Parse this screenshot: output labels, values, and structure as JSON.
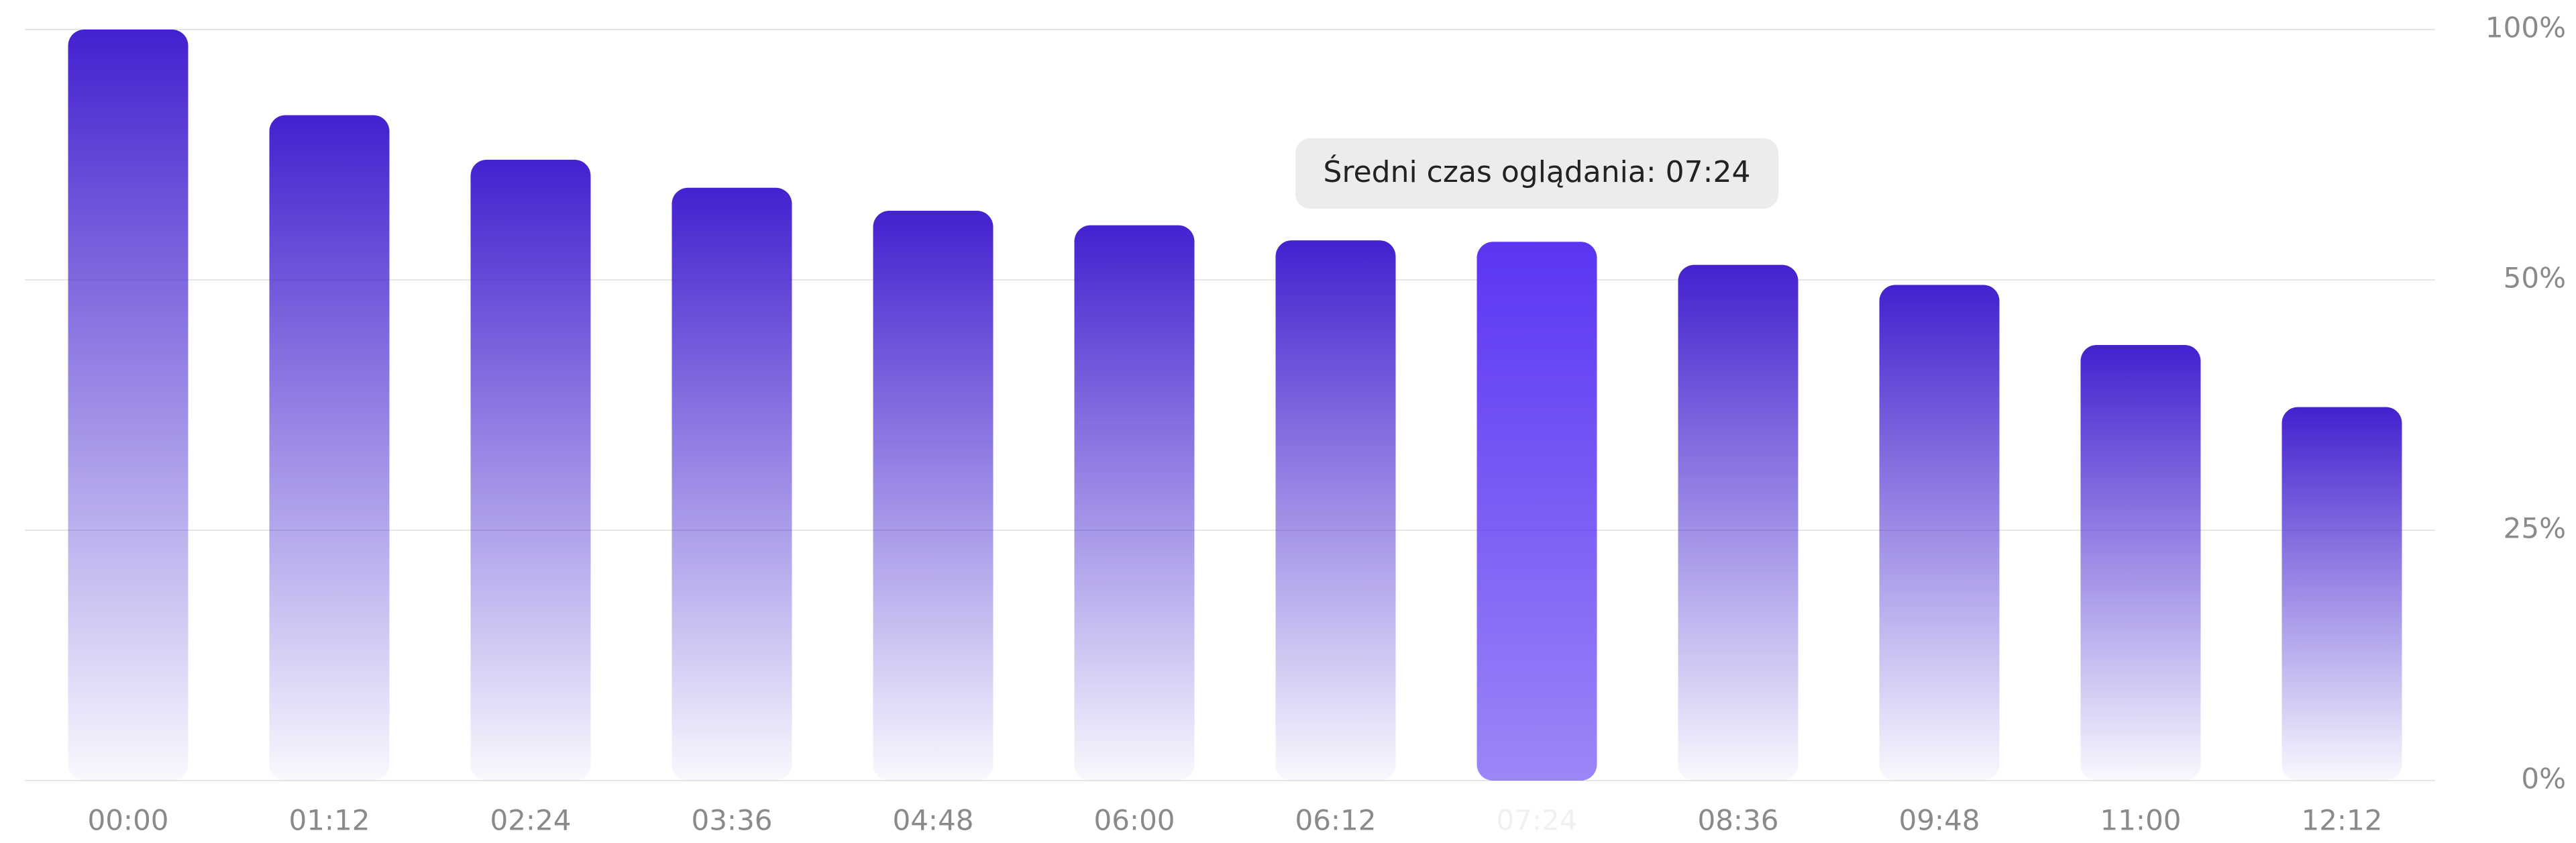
{
  "chart_data": {
    "type": "bar",
    "categories": [
      "00:00",
      "01:12",
      "02:24",
      "03:36",
      "04:48",
      "06:00",
      "06:12",
      "07:24",
      "08:36",
      "09:48",
      "11:00",
      "12:12"
    ],
    "values": [
      100,
      82.9,
      74.0,
      68.4,
      63.8,
      60.9,
      57.9,
      57.6,
      53.0,
      49.5,
      43.5,
      37.3
    ],
    "color": "#4321cf",
    "highlighted_category": "07:24",
    "highlight_color": "#5b35f3",
    "tooltip": "Średni czas oglądania: 07:24",
    "ylim": [
      0,
      100
    ],
    "yticks": [
      {
        "value": 0,
        "label": "0%"
      },
      {
        "value": 25,
        "label": "25%"
      },
      {
        "value": 50,
        "label": "50%"
      },
      {
        "value": 100,
        "label": "100%"
      }
    ],
    "grid": true
  }
}
